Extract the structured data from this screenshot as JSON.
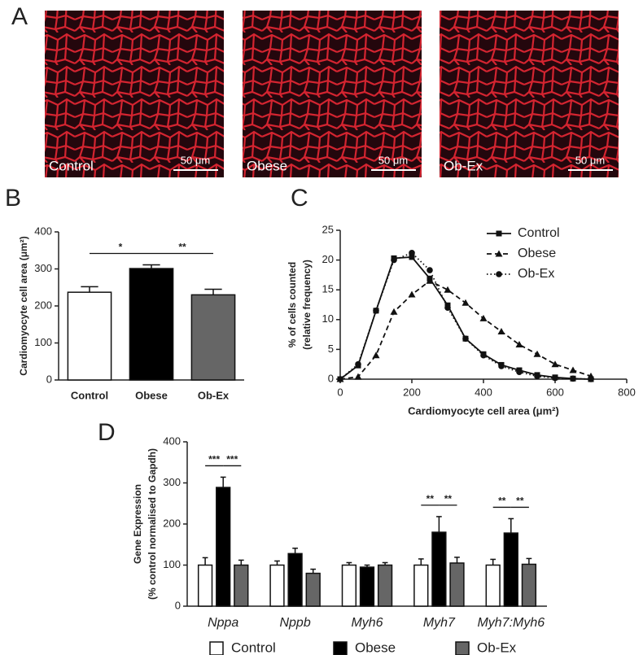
{
  "panel_labels": [
    "A",
    "B",
    "C",
    "D"
  ],
  "images": [
    {
      "label": "Control",
      "scale_bar": "50 μm"
    },
    {
      "label": "Obese",
      "scale_bar": "50 μm"
    },
    {
      "label": "Ob-Ex",
      "scale_bar": "50 μm"
    }
  ],
  "chart_data": [
    {
      "type": "bar",
      "ylabel": "Cardiomyocyte cell area (μm²)",
      "categories": [
        "Control",
        "Obese",
        "Ob-Ex"
      ],
      "values": [
        237,
        301,
        230
      ],
      "errors": [
        15,
        10,
        15
      ],
      "colors": [
        "#ffffff",
        "#000000",
        "#666666"
      ],
      "ylim": [
        0,
        400
      ],
      "yticks": [
        0,
        100,
        200,
        300,
        400
      ],
      "significance": [
        {
          "label": "*",
          "between": [
            0,
            1
          ]
        },
        {
          "label": "**",
          "between": [
            1,
            2
          ]
        }
      ]
    },
    {
      "type": "line",
      "xlabel": "Cardiomyocyte cell area (μm²)",
      "ylabel": [
        "% of cells counted",
        "(relative frequency)"
      ],
      "x": [
        0,
        50,
        100,
        150,
        200,
        250,
        300,
        350,
        400,
        450,
        500,
        550,
        600,
        650,
        700
      ],
      "series": [
        {
          "name": "Control",
          "color": "#111111",
          "linestyle": "solid",
          "marker": "square",
          "values": [
            0,
            2.3,
            11.5,
            20.3,
            20.5,
            16.9,
            12.4,
            6.8,
            4.2,
            2.4,
            1.5,
            0.7,
            0.3,
            0.1,
            0
          ]
        },
        {
          "name": "Obese",
          "color": "#111111",
          "linestyle": "dashed",
          "marker": "triangle",
          "values": [
            0,
            0.4,
            4.0,
            11.3,
            14.2,
            16.5,
            15.0,
            12.8,
            10.2,
            8.0,
            5.8,
            4.2,
            2.5,
            1.5,
            0.5
          ]
        },
        {
          "name": "Ob-Ex",
          "color": "#111111",
          "linestyle": "dotted",
          "marker": "circle",
          "values": [
            0,
            2.5,
            11.5,
            20.0,
            21.2,
            18.3,
            12.0,
            6.8,
            4.0,
            2.2,
            1.2,
            0.5,
            0.2,
            0.1,
            0
          ]
        }
      ],
      "xlim": [
        0,
        800
      ],
      "xticks": [
        0,
        200,
        400,
        600,
        800
      ],
      "ylim": [
        0,
        25
      ],
      "yticks": [
        0,
        5,
        10,
        15,
        20,
        25
      ]
    },
    {
      "type": "bar",
      "ylabel": [
        "Gene Expression",
        "(% control normalised to Gapdh)"
      ],
      "categories": [
        "Nppa",
        "Nppb",
        "Myh6",
        "Myh7",
        "Myh7:Myh6"
      ],
      "series": [
        {
          "name": "Control",
          "color": "#ffffff",
          "values": [
            100,
            100,
            100,
            100,
            100
          ],
          "errors": [
            18,
            10,
            6,
            15,
            14
          ]
        },
        {
          "name": "Obese",
          "color": "#000000",
          "values": [
            289,
            128,
            95,
            180,
            178
          ],
          "errors": [
            25,
            13,
            5,
            38,
            35
          ]
        },
        {
          "name": "Ob-Ex",
          "color": "#666666",
          "values": [
            100,
            80,
            100,
            105,
            102
          ],
          "errors": [
            12,
            10,
            6,
            14,
            14
          ]
        }
      ],
      "ylim": [
        0,
        400
      ],
      "yticks": [
        0,
        100,
        200,
        300,
        400
      ],
      "significance": [
        {
          "label": "***",
          "category": 0,
          "between": [
            0,
            1
          ]
        },
        {
          "label": "***",
          "category": 0,
          "between": [
            1,
            2
          ]
        },
        {
          "label": "**",
          "category": 3,
          "between": [
            0,
            1
          ]
        },
        {
          "label": "**",
          "category": 3,
          "between": [
            1,
            2
          ]
        },
        {
          "label": "**",
          "category": 4,
          "between": [
            0,
            1
          ]
        },
        {
          "label": "**",
          "category": 4,
          "between": [
            1,
            2
          ]
        }
      ]
    }
  ]
}
